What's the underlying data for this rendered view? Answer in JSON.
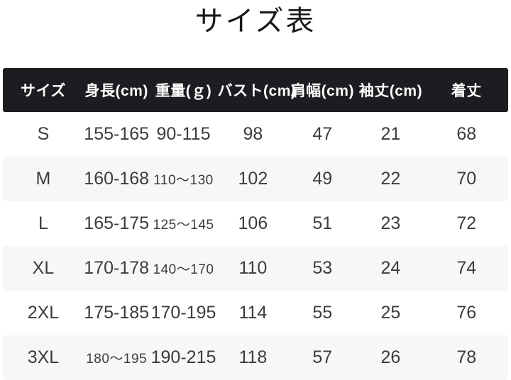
{
  "page": {
    "title": "サイズ表"
  },
  "table": {
    "columns": [
      "サイズ",
      "身長(cm)",
      "重量(ｇ)",
      "バスト(cm)",
      "肩幅(cm)",
      "袖丈(cm)",
      "着丈"
    ],
    "rows": [
      [
        "S",
        "155-165",
        "90-115",
        "98",
        "47",
        "21",
        "68"
      ],
      [
        "M",
        "160-168",
        "110〜130",
        "102",
        "49",
        "22",
        "70"
      ],
      [
        "L",
        "165-175",
        "125〜145",
        "106",
        "51",
        "23",
        "72"
      ],
      [
        "XL",
        "170-178",
        "140〜170",
        "110",
        "53",
        "24",
        "74"
      ],
      [
        "2XL",
        "175-185",
        "170-195",
        "114",
        "55",
        "25",
        "76"
      ],
      [
        "3XL",
        "180〜195",
        "190-215",
        "118",
        "57",
        "26",
        "78"
      ]
    ]
  }
}
